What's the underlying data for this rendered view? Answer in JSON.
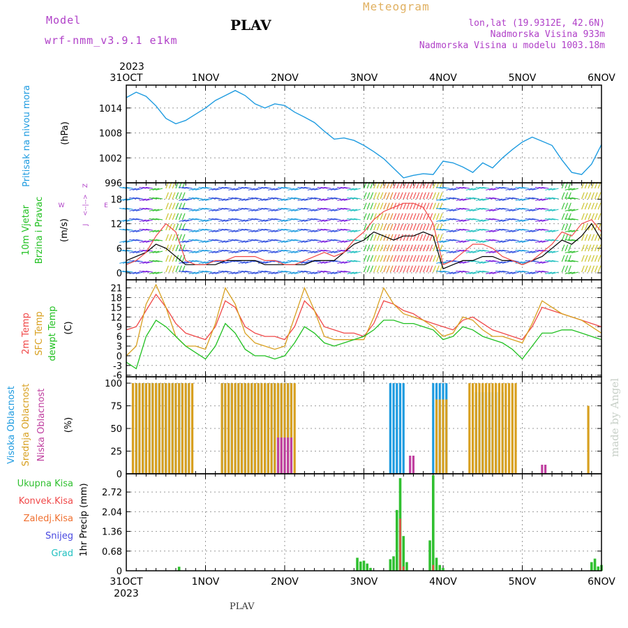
{
  "header": {
    "model_label": "Model",
    "model_version": "wrf-nmm_v3.9.1 e1km",
    "title": "PLAV",
    "meteogram_label": "Meteogram",
    "lonlat": "lon,lat (19.9312E, 42.6N)",
    "elevation": "Nadmorska Visina 933m",
    "model_elevation": "Nadmorska Visina u modelu 1003.18m"
  },
  "footer": {
    "station": "PLAV",
    "credit": "made by Angel"
  },
  "axis": {
    "year": "2023",
    "day_labels": [
      "31OCT",
      "1NOV",
      "2NOV",
      "3NOV",
      "4NOV",
      "5NOV",
      "6NOV"
    ]
  },
  "panel_labels": {
    "pressure": [
      "Pritisak na nivou mora"
    ],
    "pressure_unit": "(hPa)",
    "wind": [
      "10m Vjetar",
      "Brzina i Pravac"
    ],
    "wind_unit": "(m/s)",
    "wind_compass": {
      "n": "Z",
      "s": "J",
      "w": "W",
      "e": "E"
    },
    "temp": [
      "2m Temp",
      "SFC Temp",
      "dewpt Temp"
    ],
    "temp_unit": "(C)",
    "cloud": [
      "Visoka Oblacnost",
      "Srednja Oblacnost",
      "Niska Oblacnost"
    ],
    "cloud_unit": "(%)",
    "precip": [
      "Ukupna Kisa",
      "Konvek.Kisa",
      "Zaledj.Kisa",
      "Snijeg",
      "Grad"
    ],
    "precip_unit": "1hr Precip (mm)"
  },
  "colors": {
    "pressure": "#1e9be0",
    "temp2m": "#f04848",
    "sfc": "#d8a020",
    "dewpt": "#20c020",
    "cloud_high": "#1e9be0",
    "cloud_mid": "#d8a020",
    "cloud_low": "#c040a0",
    "rain": "#30c030",
    "conv": "#f04848",
    "frz": "#f07030",
    "snow": "#4848e0",
    "grad": "#20c0c0",
    "wind_speed": "#000000",
    "wind_gust": "#f04848"
  },
  "chart_data": [
    {
      "type": "line",
      "panel": "pressure",
      "ylabel": "(hPa)",
      "yticks": [
        996,
        1002,
        1008,
        1014
      ],
      "ylim": [
        996,
        1019.5
      ],
      "x_unit": "hours from 31OCT 00UTC",
      "x": [
        0,
        3,
        6,
        9,
        12,
        15,
        18,
        21,
        24,
        27,
        30,
        33,
        36,
        39,
        42,
        45,
        48,
        51,
        54,
        57,
        60,
        63,
        66,
        69,
        72,
        75,
        78,
        81,
        84,
        87,
        90,
        93,
        96,
        99,
        102,
        105,
        108,
        111,
        114,
        117,
        120,
        123,
        126,
        129,
        132,
        135,
        138,
        141,
        144
      ],
      "values": [
        1016.5,
        1017.8,
        1016.8,
        1014.5,
        1011.5,
        1010.2,
        1011.0,
        1012.5,
        1014.0,
        1015.8,
        1017.0,
        1018.2,
        1017.0,
        1015.0,
        1014.0,
        1015.0,
        1014.6,
        1013.0,
        1011.8,
        1010.5,
        1008.4,
        1006.5,
        1006.8,
        1006.2,
        1005.0,
        1003.5,
        1001.8,
        999.5,
        997.2,
        997.8,
        998.2,
        998.0,
        1001.2,
        1000.8,
        999.8,
        998.5,
        1000.8,
        999.6,
        1002.0,
        1004.0,
        1005.8,
        1007.0,
        1006.0,
        1005.0,
        1001.5,
        998.5,
        998.0,
        1000.5,
        1005.2
      ]
    },
    {
      "type": "line",
      "panel": "wind",
      "ylabel": "(m/s)",
      "yticks": [
        0,
        6,
        12,
        18
      ],
      "ylim": [
        -1.7,
        22
      ],
      "x": [
        0,
        3,
        6,
        9,
        12,
        15,
        18,
        21,
        24,
        27,
        30,
        33,
        36,
        39,
        42,
        45,
        48,
        51,
        54,
        57,
        60,
        63,
        66,
        69,
        72,
        75,
        78,
        81,
        84,
        87,
        90,
        93,
        96,
        99,
        102,
        105,
        108,
        111,
        114,
        117,
        120,
        123,
        126,
        129,
        132,
        135,
        138,
        141,
        144
      ],
      "series": [
        {
          "key": "speed",
          "values": [
            3,
            4,
            5,
            7,
            6,
            4,
            2,
            2,
            2,
            2,
            3,
            3,
            3,
            3,
            2,
            2,
            2,
            2,
            2,
            3,
            3,
            3,
            5,
            7,
            8,
            10,
            9,
            8,
            9,
            9,
            10,
            9,
            1,
            2,
            3,
            3,
            4,
            4,
            3,
            3,
            2,
            3,
            4,
            6,
            8,
            7,
            9,
            12,
            8
          ]
        },
        {
          "key": "gust",
          "values": [
            2,
            3,
            5,
            9,
            12,
            10,
            3,
            2,
            2,
            3,
            3,
            4,
            4,
            4,
            3,
            3,
            2,
            2,
            3,
            4,
            5,
            4,
            5,
            8,
            10,
            13,
            15,
            16,
            17,
            17,
            16,
            12,
            2,
            3,
            5,
            7,
            7,
            6,
            4,
            3,
            2,
            3,
            5,
            7,
            10,
            9,
            12,
            13,
            10
          ]
        }
      ]
    },
    {
      "type": "line",
      "panel": "temp",
      "ylabel": "(C)",
      "yticks": [
        -6,
        -3,
        0,
        3,
        6,
        9,
        12,
        15,
        18,
        21
      ],
      "ylim": [
        -6.5,
        23.5
      ],
      "x": [
        0,
        3,
        6,
        9,
        12,
        15,
        18,
        21,
        24,
        27,
        30,
        33,
        36,
        39,
        42,
        45,
        48,
        51,
        54,
        57,
        60,
        63,
        66,
        69,
        72,
        75,
        78,
        81,
        84,
        87,
        90,
        93,
        96,
        99,
        102,
        105,
        108,
        111,
        114,
        117,
        120,
        123,
        126,
        129,
        132,
        135,
        138,
        141,
        144
      ],
      "series": [
        {
          "key": "temp2m",
          "values": [
            8,
            9,
            14,
            19,
            15,
            10,
            7,
            6,
            5,
            9,
            17,
            15,
            9,
            7,
            6,
            6,
            5,
            9,
            17,
            14,
            9,
            8,
            7,
            7,
            6,
            10,
            17,
            16,
            14,
            13,
            11,
            10,
            9,
            8,
            11,
            12,
            10,
            8,
            7,
            6,
            5,
            9,
            15,
            14,
            13,
            12,
            11,
            10,
            9
          ]
        },
        {
          "key": "sfc",
          "values": [
            0,
            3,
            16,
            22,
            15,
            6,
            3,
            3,
            2,
            10,
            21,
            16,
            7,
            4,
            3,
            2,
            3,
            12,
            21,
            14,
            6,
            5,
            5,
            5,
            5,
            12,
            21,
            16,
            13,
            12,
            11,
            9,
            6,
            7,
            12,
            11,
            8,
            6,
            6,
            5,
            4,
            10,
            17,
            15,
            13,
            12,
            11,
            9,
            7
          ]
        },
        {
          "key": "dewpt",
          "values": [
            -2,
            -4,
            6,
            11,
            9,
            6,
            3,
            1,
            -1,
            3,
            10,
            7,
            2,
            0,
            0,
            -1,
            0,
            4,
            9,
            7,
            4,
            3,
            4,
            5,
            6,
            8,
            11,
            11,
            10,
            10,
            9,
            8,
            5,
            6,
            9,
            8,
            6,
            5,
            4,
            2,
            -1,
            3,
            7,
            7,
            8,
            8,
            7,
            6,
            5
          ]
        }
      ]
    },
    {
      "type": "bar",
      "panel": "cloud",
      "ylabel": "(%)",
      "yticks": [
        0,
        25,
        50,
        75,
        100
      ],
      "ylim": [
        0,
        107
      ],
      "series": [
        {
          "key": "cloud_high",
          "runs": [
            [
              3,
              19,
              100
            ],
            [
              29,
              50,
              100
            ],
            [
              80,
              84,
              100
            ],
            [
              93,
              97,
              100
            ],
            [
              106,
              114,
              90
            ]
          ]
        },
        {
          "key": "cloud_mid",
          "runs": [
            [
              2,
              20,
              100
            ],
            [
              29,
              51,
              100
            ],
            [
              94,
              97,
              82
            ],
            [
              104,
              118,
              100
            ]
          ]
        },
        {
          "key": "cloud_low",
          "runs": [
            [
              46,
              50,
              40
            ],
            [
              86,
              87,
              20
            ],
            [
              126,
              127,
              10
            ]
          ]
        },
        {
          "key": "cloud_mid",
          "points": [
            [
              140,
              75
            ]
          ]
        }
      ]
    },
    {
      "type": "bar",
      "panel": "precip",
      "ylabel": "1hr Precip (mm)",
      "yticks": [
        0,
        0.68,
        1.36,
        2.04,
        2.72
      ],
      "ylim": [
        0,
        3.35
      ],
      "series": [
        {
          "key": "rain",
          "points": [
            [
              16,
              0.14
            ],
            [
              70,
              0.45
            ],
            [
              71,
              0.32
            ],
            [
              72,
              0.35
            ],
            [
              73,
              0.25
            ],
            [
              74,
              0.1
            ],
            [
              80,
              0.4
            ],
            [
              81,
              0.5
            ],
            [
              82,
              2.1
            ],
            [
              83,
              3.2
            ],
            [
              84,
              1.2
            ],
            [
              85,
              0.3
            ],
            [
              92,
              1.05
            ],
            [
              93,
              3.3
            ],
            [
              94,
              0.45
            ],
            [
              95,
              0.2
            ],
            [
              96,
              0.1
            ],
            [
              141,
              0.3
            ],
            [
              142,
              0.42
            ],
            [
              143,
              0.15
            ],
            [
              144,
              0.2
            ]
          ]
        },
        {
          "key": "conv",
          "points": [
            [
              83,
              1.8
            ],
            [
              84,
              0.15
            ],
            [
              93,
              0.2
            ]
          ]
        }
      ]
    }
  ]
}
